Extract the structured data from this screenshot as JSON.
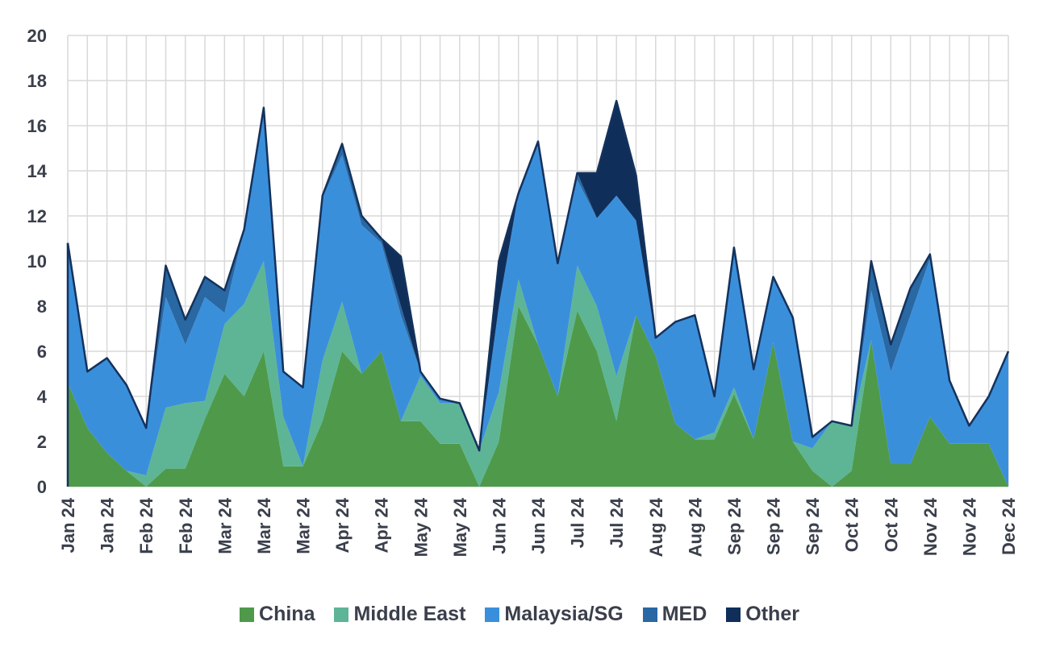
{
  "chart_data": {
    "type": "area",
    "stacked": true,
    "title": "",
    "xlabel": "",
    "ylabel": "",
    "ylim": [
      0,
      20
    ],
    "yticks": [
      0,
      2,
      4,
      6,
      8,
      10,
      12,
      14,
      16,
      18,
      20
    ],
    "grid": true,
    "legend_position": "bottom",
    "x_tick_labels": [
      "Jan 24",
      "Jan 24",
      "Feb 24",
      "Feb 24",
      "Mar 24",
      "Mar 24",
      "Mar 24",
      "Apr 24",
      "Apr 24",
      "May 24",
      "May 24",
      "Jun 24",
      "Jun 24",
      "Jul 24",
      "Jul 24",
      "Aug 24",
      "Aug 24",
      "Sep 24",
      "Sep 24",
      "Sep 24",
      "Oct 24",
      "Oct 24",
      "Nov 24",
      "Nov 24",
      "Dec 24"
    ],
    "x_tick_every": 2,
    "series": [
      {
        "name": "China",
        "color": "#4e9a4a",
        "values": [
          4.6,
          2.6,
          1.5,
          0.7,
          0.0,
          0.8,
          0.8,
          3.0,
          5.0,
          4.0,
          6.0,
          0.9,
          0.9,
          2.9,
          6.0,
          5.0,
          6.0,
          2.9,
          2.9,
          1.9,
          1.9,
          0.0,
          2.0,
          8.0,
          6.3,
          4.0,
          7.8,
          6.0,
          2.9,
          7.6,
          5.8,
          2.8,
          2.1,
          2.1,
          4.1,
          2.1,
          6.4,
          2.0,
          0.7,
          0.0,
          0.7,
          6.5,
          1.0,
          1.0,
          3.1,
          1.9,
          1.9,
          1.9,
          0.0
        ]
      },
      {
        "name": "Middle East",
        "color": "#5db595",
        "values": [
          0.0,
          0.0,
          0.0,
          0.0,
          0.5,
          2.7,
          2.9,
          0.8,
          2.2,
          4.1,
          4.0,
          2.2,
          0.0,
          2.7,
          2.2,
          0.0,
          0.0,
          0.0,
          2.0,
          1.8,
          1.8,
          1.6,
          2.2,
          1.2,
          0.0,
          0.0,
          2.0,
          2.0,
          2.0,
          0.0,
          0.0,
          0.0,
          0.0,
          0.3,
          0.3,
          0.0,
          0.0,
          0.0,
          1.0,
          2.9,
          2.0,
          0.0,
          0.0,
          0.0,
          0.0,
          0.0,
          0.0,
          0.0,
          0.0
        ]
      },
      {
        "name": "Malaysia/SG",
        "color": "#3a8fdb",
        "values": [
          6.2,
          2.5,
          4.2,
          3.8,
          2.1,
          4.9,
          2.6,
          4.6,
          0.5,
          3.3,
          6.8,
          2.0,
          3.5,
          7.2,
          6.5,
          6.6,
          4.8,
          4.7,
          0.2,
          0.2,
          0.0,
          0.0,
          3.8,
          3.8,
          9.0,
          5.9,
          3.8,
          3.9,
          8.0,
          4.2,
          0.8,
          4.5,
          5.5,
          1.6,
          6.2,
          3.1,
          2.9,
          5.5,
          0.5,
          0.0,
          0.0,
          2.2,
          4.1,
          6.6,
          7.0,
          2.8,
          0.8,
          2.1,
          6.0
        ]
      },
      {
        "name": "MED",
        "color": "#2968a3",
        "values": [
          0.0,
          0.0,
          0.0,
          0.0,
          0.0,
          1.4,
          1.1,
          0.9,
          1.0,
          0.0,
          0.0,
          0.0,
          0.0,
          0.1,
          0.5,
          0.4,
          0.2,
          0.4,
          0.0,
          0.0,
          0.0,
          0.0,
          0.0,
          0.0,
          0.0,
          0.0,
          0.3,
          0.0,
          0.0,
          0.0,
          0.0,
          0.0,
          0.0,
          0.0,
          0.0,
          0.0,
          0.0,
          0.0,
          0.0,
          0.0,
          0.0,
          1.3,
          1.2,
          1.2,
          0.2,
          0.0,
          0.0,
          0.0,
          0.0
        ]
      },
      {
        "name": "Other",
        "color": "#0f2f5a",
        "values": [
          0.0,
          0.0,
          0.0,
          0.0,
          0.0,
          0.0,
          0.0,
          0.0,
          0.0,
          0.0,
          0.0,
          0.0,
          0.0,
          0.0,
          0.0,
          0.0,
          0.0,
          2.2,
          0.0,
          0.0,
          0.0,
          0.0,
          2.0,
          0.0,
          0.0,
          0.0,
          0.0,
          2.0,
          4.2,
          2.0,
          0.0,
          0.0,
          0.0,
          0.0,
          0.0,
          0.0,
          0.0,
          0.0,
          0.0,
          0.0,
          0.0,
          0.0,
          0.0,
          0.0,
          0.0,
          0.0,
          0.0,
          0.0,
          0.0
        ]
      }
    ],
    "outline_color": "#14325c"
  }
}
